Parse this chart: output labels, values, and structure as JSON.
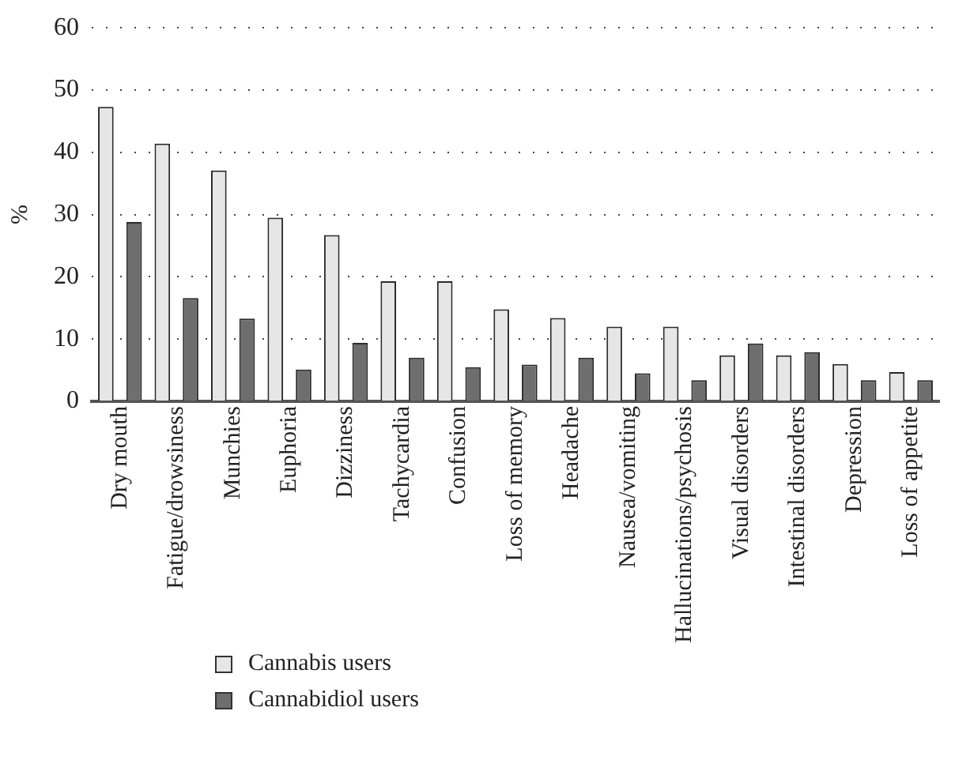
{
  "chart_data": {
    "type": "bar",
    "ylabel": "%",
    "categories": [
      "Dry mouth",
      "Fatigue/drowsiness",
      "Munchies",
      "Euphoria",
      "Dizziness",
      "Tachycardia",
      "Confusion",
      "Loss of memory",
      "Headache",
      "Nausea/vomiting",
      "Hallucinations/psychosis",
      "Visual disorders",
      "Intestinal disorders",
      "Depression",
      "Loss of appetite"
    ],
    "series": [
      {
        "name": "Cannabis users",
        "color": "#e6e6e6",
        "values": [
          47.3,
          41.4,
          37.1,
          29.5,
          26.7,
          19.3,
          19.3,
          14.8,
          13.4,
          12.0,
          12.0,
          7.4,
          7.4,
          6.0,
          4.7
        ]
      },
      {
        "name": "Cannabidiol users",
        "color": "#6e6e6e",
        "values": [
          28.8,
          16.6,
          13.3,
          5.1,
          9.4,
          7.0,
          5.5,
          5.9,
          7.0,
          4.5,
          3.4,
          9.3,
          7.9,
          3.4,
          3.4
        ]
      }
    ],
    "ylim": [
      0,
      60
    ],
    "yticks": [
      0,
      10,
      20,
      30,
      40,
      50,
      60
    ],
    "grid": "y",
    "legend": "bottom left"
  }
}
